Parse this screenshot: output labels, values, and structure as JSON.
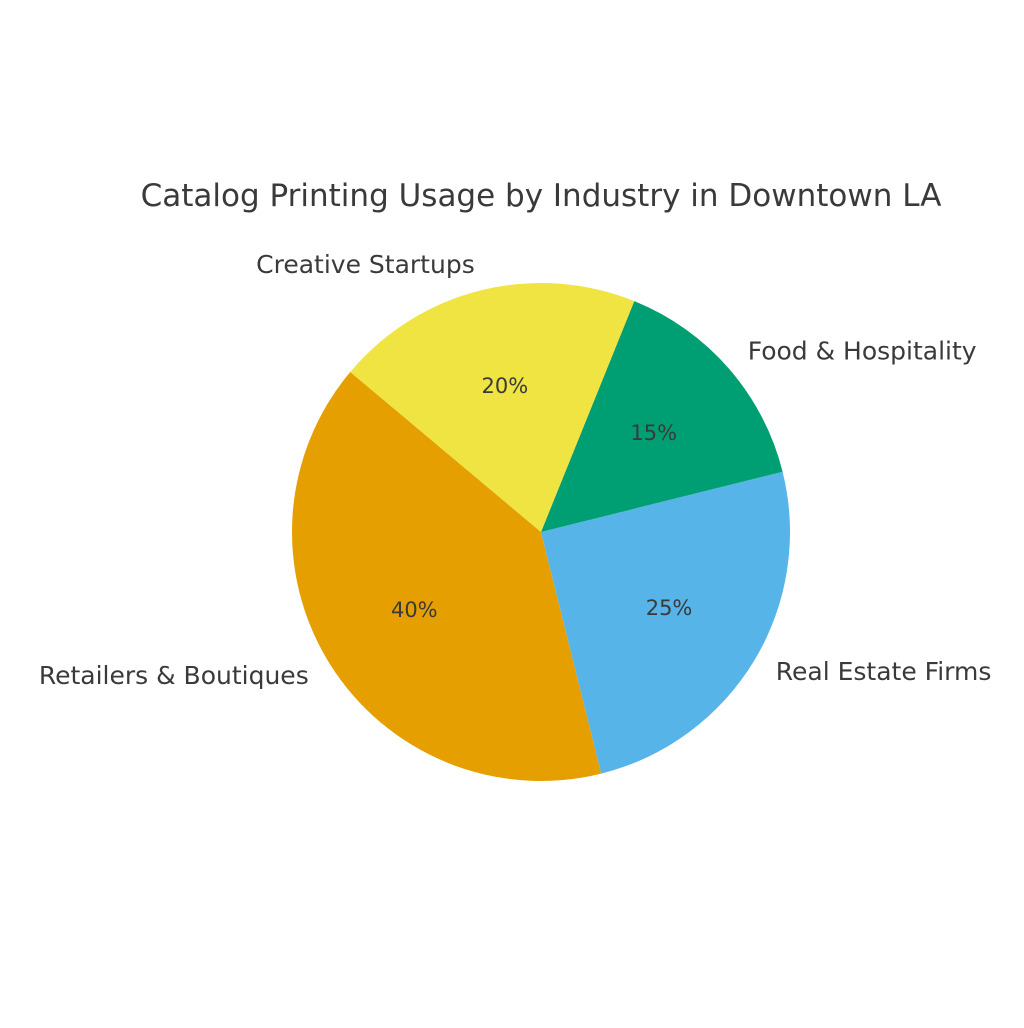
{
  "chart_data": {
    "type": "pie",
    "title": "Catalog Printing Usage by Industry in Downtown LA",
    "start_angle_deg": 140,
    "direction": "counterclockwise",
    "slices": [
      {
        "label": "Retailers & Boutiques",
        "value": 40,
        "pct_label": "40%",
        "color": "#E69F00"
      },
      {
        "label": "Real Estate Firms",
        "value": 25,
        "pct_label": "25%",
        "color": "#56B4E9"
      },
      {
        "label": "Food & Hospitality",
        "value": 15,
        "pct_label": "15%",
        "color": "#009E73"
      },
      {
        "label": "Creative Startups",
        "value": 20,
        "pct_label": "20%",
        "color": "#F0E442"
      }
    ]
  }
}
